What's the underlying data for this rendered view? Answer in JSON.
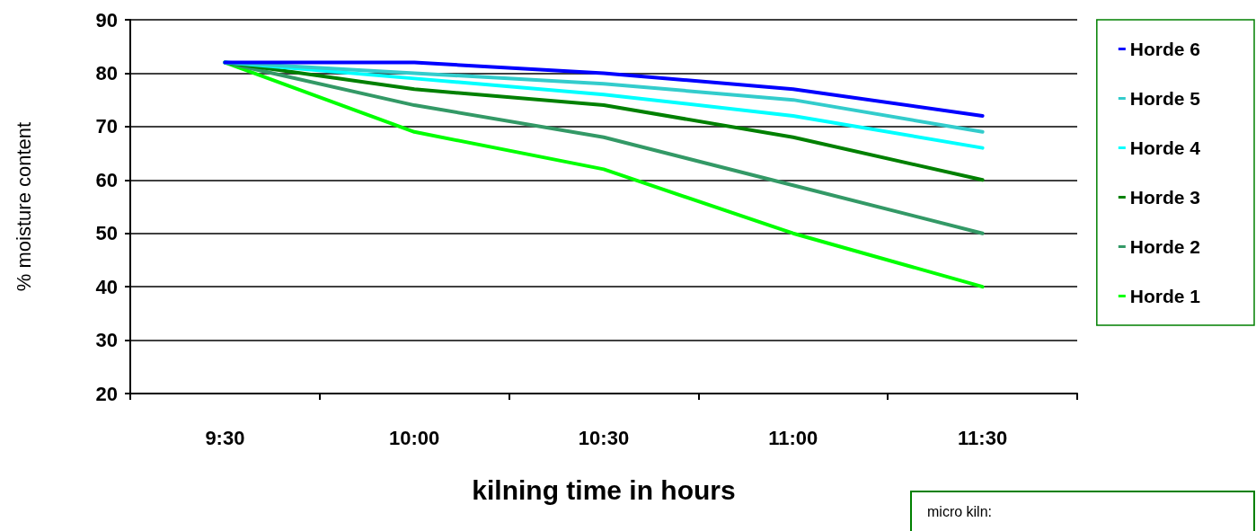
{
  "chart_data": {
    "type": "line",
    "xlabel": "kilning time in hours",
    "ylabel": "% moisture content",
    "categories": [
      "9:30",
      "10:00",
      "10:30",
      "11:00",
      "11:30"
    ],
    "series": [
      {
        "name": "Horde 6",
        "color": "#0000ff",
        "values": [
          82,
          82,
          80,
          77,
          72
        ]
      },
      {
        "name": "Horde 5",
        "color": "#33cccc",
        "values": [
          82,
          80,
          78,
          75,
          69
        ]
      },
      {
        "name": "Horde 4",
        "color": "#00ffff",
        "values": [
          82,
          79,
          76,
          72,
          66
        ]
      },
      {
        "name": "Horde 3",
        "color": "#008000",
        "values": [
          82,
          77,
          74,
          68,
          60
        ]
      },
      {
        "name": "Horde 2",
        "color": "#339966",
        "values": [
          82,
          74,
          68,
          59,
          50
        ]
      },
      {
        "name": "Horde 1",
        "color": "#00ff00",
        "values": [
          82,
          69,
          62,
          50,
          40
        ]
      }
    ],
    "ylim": [
      20,
      90
    ],
    "yticks": [
      20,
      30,
      40,
      50,
      60,
      70,
      80,
      90
    ],
    "grid": "y",
    "legend": "right",
    "marker": "none",
    "line_style": "solid",
    "annotations": [
      "micro kiln:"
    ]
  }
}
